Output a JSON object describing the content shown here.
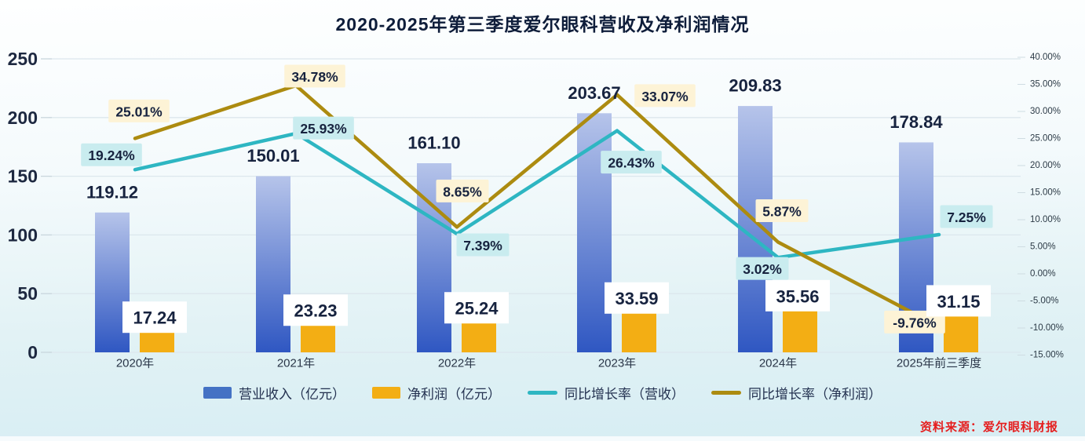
{
  "title": "2020-2025年第三季度爱尔眼科营收及净利润情况",
  "source_note": "资料来源：爱尔眼科财报",
  "colors": {
    "revenue_bar_top": "#b6c4ea",
    "revenue_bar_bottom": "#2f57c2",
    "profit_bar": "#f3ae14",
    "revenue_growth_line": "#2eb6c2",
    "profit_growth_line": "#ac8b10",
    "revenue_growth_label_bg": "#c9ecef",
    "profit_growth_label_bg": "#fdf3d6",
    "grid_line": "#dce7ed",
    "title_text": "#0e1d3a",
    "source_text": "#e51e1e"
  },
  "chart_data": {
    "type": "bar",
    "subtype": "combo-bar-line-dual-axis",
    "title": "2020-2025年第三季度爱尔眼科营收及净利润情况",
    "categories": [
      "2020年",
      "2021年",
      "2022年",
      "2023年",
      "2024年",
      "2025年前三季度"
    ],
    "bar_series": [
      {
        "name": "营业收入（亿元）",
        "axis": "left",
        "color": "#4472c4",
        "values": [
          119.12,
          150.01,
          161.1,
          203.67,
          209.83,
          178.84
        ],
        "labels": [
          "119.12",
          "150.01",
          "161.10",
          "203.67",
          "209.83",
          "178.84"
        ]
      },
      {
        "name": "净利润（亿元）",
        "axis": "left",
        "color": "#f3ae14",
        "values": [
          17.24,
          23.23,
          25.24,
          33.59,
          35.56,
          31.15
        ],
        "labels": [
          "17.24",
          "23.23",
          "25.24",
          "33.59",
          "35.56",
          "31.15"
        ]
      }
    ],
    "line_series": [
      {
        "name": "同比增长率（营收）",
        "axis": "right",
        "color": "#2eb6c2",
        "label_bg": "#c9ecef",
        "values": [
          19.24,
          25.93,
          7.39,
          26.43,
          3.02,
          7.25
        ],
        "labels": [
          "19.24%",
          "25.93%",
          "7.39%",
          "26.43%",
          "3.02%",
          "7.25%"
        ]
      },
      {
        "name": "同比增长率（净利润）",
        "axis": "right",
        "color": "#ac8b10",
        "label_bg": "#fdf3d6",
        "values": [
          25.01,
          34.78,
          8.65,
          33.07,
          5.87,
          -9.76
        ],
        "labels": [
          "25.01%",
          "34.78%",
          "8.65%",
          "33.07%",
          "5.87%",
          "-9.76%"
        ]
      }
    ],
    "left_axis": {
      "ticks": [
        0,
        50,
        100,
        150,
        200,
        250
      ],
      "range": [
        0,
        250
      ]
    },
    "right_axis": {
      "ticks": [
        "40.00%",
        "35.00%",
        "30.00%",
        "25.00%",
        "20.00%",
        "15.00%",
        "10.00%",
        "5.00%",
        "0.00%",
        "-5.00%",
        "-10.00%",
        "-15.00%"
      ],
      "range_pct": [
        -15,
        40
      ]
    },
    "grid": true,
    "legend_position": "bottom"
  }
}
